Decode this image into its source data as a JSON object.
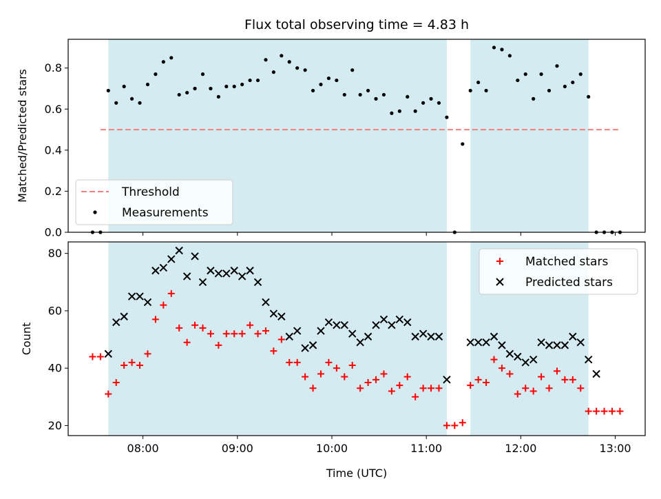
{
  "chart_data": {
    "type": "scatter",
    "title": "Flux total observing time = 4.83 h",
    "xlabel": "Time (UTC)",
    "x_ticks": [
      "08:00",
      "09:00",
      "10:00",
      "11:00",
      "12:00",
      "13:00"
    ],
    "shaded_color": "#add8e6",
    "shaded_intervals": [
      [
        "07:38",
        "11:13"
      ],
      [
        "11:28",
        "12:43"
      ]
    ],
    "panels": [
      {
        "ylabel": "Matched/Predicted stars",
        "ylim": [
          0,
          0.94
        ],
        "y_ticks": [
          "0.0",
          "0.2",
          "0.4",
          "0.6",
          "0.8"
        ],
        "legend_position": "bottom-left",
        "threshold": {
          "name": "Threshold",
          "value": 0.5,
          "x_range": [
            "07:33",
            "13:03"
          ],
          "color": "#f08080"
        },
        "series": [
          {
            "name": "Measurements",
            "color": "#000000",
            "marker": "dot",
            "points": [
              [
                "07:28",
                0.0
              ],
              [
                "07:33",
                0.0
              ],
              [
                "07:38",
                0.69
              ],
              [
                "07:43",
                0.63
              ],
              [
                "07:48",
                0.71
              ],
              [
                "07:53",
                0.65
              ],
              [
                "07:58",
                0.63
              ],
              [
                "08:03",
                0.72
              ],
              [
                "08:08",
                0.77
              ],
              [
                "08:13",
                0.83
              ],
              [
                "08:18",
                0.85
              ],
              [
                "08:23",
                0.67
              ],
              [
                "08:28",
                0.68
              ],
              [
                "08:33",
                0.7
              ],
              [
                "08:38",
                0.77
              ],
              [
                "08:43",
                0.7
              ],
              [
                "08:48",
                0.66
              ],
              [
                "08:53",
                0.71
              ],
              [
                "08:58",
                0.71
              ],
              [
                "09:03",
                0.72
              ],
              [
                "09:08",
                0.74
              ],
              [
                "09:13",
                0.74
              ],
              [
                "09:18",
                0.84
              ],
              [
                "09:23",
                0.78
              ],
              [
                "09:28",
                0.86
              ],
              [
                "09:33",
                0.83
              ],
              [
                "09:38",
                0.8
              ],
              [
                "09:43",
                0.79
              ],
              [
                "09:48",
                0.69
              ],
              [
                "09:53",
                0.72
              ],
              [
                "09:58",
                0.75
              ],
              [
                "10:03",
                0.74
              ],
              [
                "10:08",
                0.67
              ],
              [
                "10:13",
                0.79
              ],
              [
                "10:18",
                0.67
              ],
              [
                "10:23",
                0.69
              ],
              [
                "10:28",
                0.65
              ],
              [
                "10:33",
                0.67
              ],
              [
                "10:38",
                0.58
              ],
              [
                "10:43",
                0.59
              ],
              [
                "10:48",
                0.66
              ],
              [
                "10:53",
                0.59
              ],
              [
                "10:58",
                0.63
              ],
              [
                "11:03",
                0.65
              ],
              [
                "11:08",
                0.63
              ],
              [
                "11:13",
                0.56
              ],
              [
                "11:18",
                0.0
              ],
              [
                "11:23",
                0.43
              ],
              [
                "11:28",
                0.69
              ],
              [
                "11:33",
                0.73
              ],
              [
                "11:38",
                0.69
              ],
              [
                "11:43",
                0.9
              ],
              [
                "11:48",
                0.89
              ],
              [
                "11:53",
                0.86
              ],
              [
                "11:58",
                0.74
              ],
              [
                "12:03",
                0.77
              ],
              [
                "12:08",
                0.65
              ],
              [
                "12:13",
                0.77
              ],
              [
                "12:18",
                0.69
              ],
              [
                "12:23",
                0.81
              ],
              [
                "12:28",
                0.71
              ],
              [
                "12:33",
                0.73
              ],
              [
                "12:38",
                0.77
              ],
              [
                "12:43",
                0.66
              ],
              [
                "12:48",
                0.0
              ],
              [
                "12:53",
                0.0
              ],
              [
                "12:58",
                0.0
              ],
              [
                "13:03",
                0.0
              ]
            ]
          }
        ]
      },
      {
        "ylabel": "Count",
        "ylim": [
          16.5,
          84
        ],
        "y_ticks": [
          "20",
          "40",
          "60",
          "80"
        ],
        "legend_position": "top-right",
        "series": [
          {
            "name": "Matched stars",
            "color": "#ff0000",
            "marker": "plus",
            "points": [
              [
                "07:28",
                44
              ],
              [
                "07:33",
                44
              ],
              [
                "07:38",
                31
              ],
              [
                "07:43",
                35
              ],
              [
                "07:48",
                41
              ],
              [
                "07:53",
                42
              ],
              [
                "07:58",
                41
              ],
              [
                "08:03",
                45
              ],
              [
                "08:08",
                57
              ],
              [
                "08:13",
                62
              ],
              [
                "08:18",
                66
              ],
              [
                "08:23",
                54
              ],
              [
                "08:28",
                49
              ],
              [
                "08:33",
                55
              ],
              [
                "08:38",
                54
              ],
              [
                "08:43",
                52
              ],
              [
                "08:48",
                48
              ],
              [
                "08:53",
                52
              ],
              [
                "08:58",
                52
              ],
              [
                "09:03",
                52
              ],
              [
                "09:08",
                55
              ],
              [
                "09:13",
                52
              ],
              [
                "09:18",
                53
              ],
              [
                "09:23",
                46
              ],
              [
                "09:28",
                50
              ],
              [
                "09:33",
                42
              ],
              [
                "09:38",
                42
              ],
              [
                "09:43",
                37
              ],
              [
                "09:48",
                33
              ],
              [
                "09:53",
                38
              ],
              [
                "09:58",
                42
              ],
              [
                "10:03",
                40
              ],
              [
                "10:08",
                37
              ],
              [
                "10:13",
                41
              ],
              [
                "10:18",
                33
              ],
              [
                "10:23",
                35
              ],
              [
                "10:28",
                36
              ],
              [
                "10:33",
                38
              ],
              [
                "10:38",
                32
              ],
              [
                "10:43",
                34
              ],
              [
                "10:48",
                37
              ],
              [
                "10:53",
                30
              ],
              [
                "10:58",
                33
              ],
              [
                "11:03",
                33
              ],
              [
                "11:08",
                33
              ],
              [
                "11:13",
                20
              ],
              [
                "11:18",
                20
              ],
              [
                "11:23",
                21
              ],
              [
                "11:28",
                34
              ],
              [
                "11:33",
                36
              ],
              [
                "11:38",
                35
              ],
              [
                "11:43",
                43
              ],
              [
                "11:48",
                40
              ],
              [
                "11:53",
                38
              ],
              [
                "11:58",
                31
              ],
              [
                "12:03",
                33
              ],
              [
                "12:08",
                32
              ],
              [
                "12:13",
                37
              ],
              [
                "12:18",
                33
              ],
              [
                "12:23",
                39
              ],
              [
                "12:28",
                36
              ],
              [
                "12:33",
                36
              ],
              [
                "12:38",
                33
              ],
              [
                "12:43",
                25
              ],
              [
                "12:48",
                25
              ],
              [
                "12:53",
                25
              ],
              [
                "12:58",
                25
              ],
              [
                "13:03",
                25
              ]
            ]
          },
          {
            "name": "Predicted stars",
            "color": "#000000",
            "marker": "x",
            "points": [
              [
                "07:38",
                45
              ],
              [
                "07:43",
                56
              ],
              [
                "07:48",
                58
              ],
              [
                "07:53",
                65
              ],
              [
                "07:58",
                65
              ],
              [
                "08:03",
                63
              ],
              [
                "08:08",
                74
              ],
              [
                "08:13",
                75
              ],
              [
                "08:18",
                78
              ],
              [
                "08:23",
                81
              ],
              [
                "08:28",
                72
              ],
              [
                "08:33",
                79
              ],
              [
                "08:38",
                70
              ],
              [
                "08:43",
                74
              ],
              [
                "08:48",
                73
              ],
              [
                "08:53",
                73
              ],
              [
                "08:58",
                74
              ],
              [
                "09:03",
                72
              ],
              [
                "09:08",
                74
              ],
              [
                "09:13",
                70
              ],
              [
                "09:18",
                63
              ],
              [
                "09:23",
                59
              ],
              [
                "09:28",
                58
              ],
              [
                "09:33",
                51
              ],
              [
                "09:38",
                53
              ],
              [
                "09:43",
                47
              ],
              [
                "09:48",
                48
              ],
              [
                "09:53",
                53
              ],
              [
                "09:58",
                56
              ],
              [
                "10:03",
                55
              ],
              [
                "10:08",
                55
              ],
              [
                "10:13",
                52
              ],
              [
                "10:18",
                49
              ],
              [
                "10:23",
                51
              ],
              [
                "10:28",
                55
              ],
              [
                "10:33",
                57
              ],
              [
                "10:38",
                55
              ],
              [
                "10:43",
                57
              ],
              [
                "10:48",
                56
              ],
              [
                "10:53",
                51
              ],
              [
                "10:58",
                52
              ],
              [
                "11:03",
                51
              ],
              [
                "11:08",
                51
              ],
              [
                "11:13",
                36
              ],
              [
                "11:28",
                49
              ],
              [
                "11:33",
                49
              ],
              [
                "11:38",
                49
              ],
              [
                "11:43",
                51
              ],
              [
                "11:48",
                48
              ],
              [
                "11:53",
                45
              ],
              [
                "11:58",
                44
              ],
              [
                "12:03",
                42
              ],
              [
                "12:08",
                43
              ],
              [
                "12:13",
                49
              ],
              [
                "12:18",
                48
              ],
              [
                "12:23",
                48
              ],
              [
                "12:28",
                48
              ],
              [
                "12:33",
                51
              ],
              [
                "12:38",
                49
              ],
              [
                "12:43",
                43
              ],
              [
                "12:48",
                38
              ]
            ]
          }
        ]
      }
    ]
  }
}
